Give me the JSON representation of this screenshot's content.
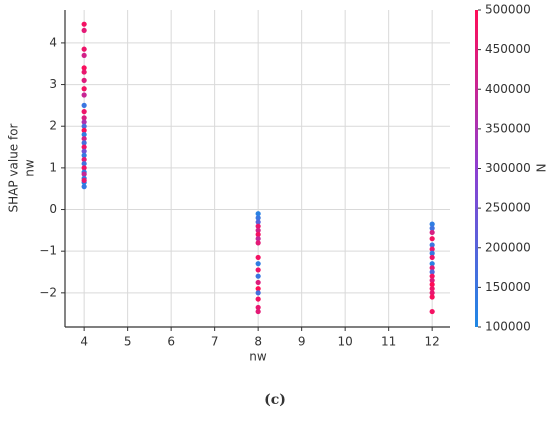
{
  "chart_data": {
    "type": "scatter",
    "xlabel": "nw",
    "ylabel": [
      "SHAP value for",
      "nw"
    ],
    "colorbar_label": "N",
    "caption": "(c)",
    "grid": true,
    "colormap": [
      "#1e88e5",
      "#8e3fd1",
      "#ff0d57"
    ],
    "xlim": [
      3.56,
      12.41
    ],
    "ylim": [
      -2.82,
      4.79
    ],
    "clim": [
      100000,
      500000
    ],
    "xticks": [
      4,
      5,
      6,
      7,
      8,
      9,
      10,
      11,
      12
    ],
    "yticks": [
      {
        "value": -2,
        "label": "−2"
      },
      {
        "value": -1,
        "label": "−1"
      },
      0,
      1,
      2,
      3,
      4
    ],
    "cticks": [
      100000,
      150000,
      200000,
      250000,
      300000,
      350000,
      400000,
      450000,
      500000
    ],
    "x": [
      4,
      4,
      4,
      4,
      4,
      4,
      4,
      4,
      4,
      4,
      4,
      4,
      4,
      4,
      4,
      4,
      4,
      4,
      4,
      4,
      4,
      4,
      4,
      4,
      4,
      4,
      4,
      4,
      4,
      4,
      8,
      8,
      8,
      8,
      8,
      8,
      8,
      8,
      8,
      8,
      8,
      8,
      8,
      8,
      8,
      8,
      8,
      8,
      12,
      12,
      12,
      12,
      12,
      12,
      12,
      12,
      12,
      12,
      12,
      12,
      12,
      12,
      12,
      12,
      12,
      12
    ],
    "y": [
      4.45,
      4.3,
      3.85,
      3.7,
      3.4,
      3.3,
      3.1,
      2.9,
      2.75,
      2.5,
      2.35,
      2.2,
      2.1,
      2.0,
      1.9,
      1.8,
      1.7,
      1.6,
      1.5,
      1.4,
      1.3,
      1.2,
      1.1,
      1.0,
      0.9,
      0.85,
      0.75,
      0.65,
      0.55,
      0.7,
      -0.1,
      -0.2,
      -0.3,
      -0.4,
      -0.5,
      -0.6,
      -0.7,
      -0.8,
      -1.15,
      -1.3,
      -1.45,
      -1.6,
      -1.75,
      -1.9,
      -2.0,
      -2.15,
      -2.35,
      -2.45,
      -0.35,
      -0.45,
      -0.55,
      -0.7,
      -0.85,
      -0.95,
      -1.05,
      -1.15,
      -1.3,
      -1.4,
      -1.5,
      -1.6,
      -1.7,
      -1.8,
      -1.9,
      -2.0,
      -2.1,
      -2.45
    ],
    "c": [
      480000,
      450000,
      470000,
      420000,
      490000,
      460000,
      440000,
      480000,
      400000,
      150000,
      470000,
      430000,
      360000,
      180000,
      490000,
      130000,
      420000,
      170000,
      470000,
      250000,
      140000,
      450000,
      160000,
      480000,
      130000,
      400000,
      150000,
      120000,
      140000,
      460000,
      120000,
      150000,
      200000,
      460000,
      420000,
      480000,
      390000,
      450000,
      480000,
      130000,
      470000,
      150000,
      440000,
      500000,
      170000,
      480000,
      460000,
      450000,
      130000,
      160000,
      430000,
      480000,
      150000,
      460000,
      140000,
      470000,
      120000,
      450000,
      190000,
      480000,
      440000,
      500000,
      470000,
      460000,
      490000,
      480000
    ]
  }
}
